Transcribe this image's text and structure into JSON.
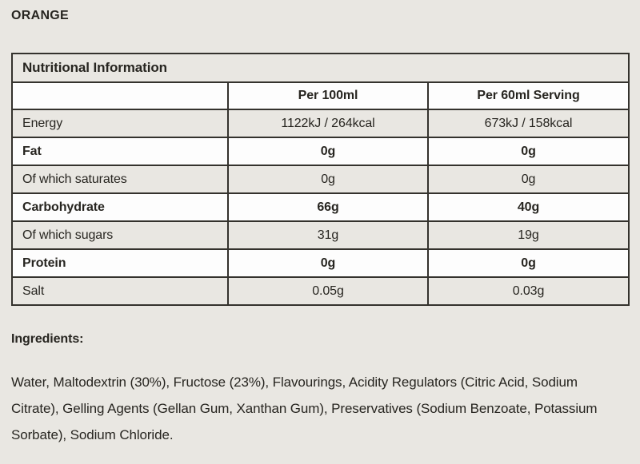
{
  "page": {
    "title": "ORANGE"
  },
  "colors": {
    "background": "#e9e7e2",
    "row_plain": "#fdfdfd",
    "border": "#34322d",
    "text": "#272520"
  },
  "table": {
    "title": "Nutritional Information",
    "columns": [
      "",
      "Per 100ml",
      "Per 60ml Serving"
    ],
    "rows": [
      {
        "label": "Energy",
        "per_100ml": "1122kJ / 264kcal",
        "per_serving": "673kJ / 158kcal",
        "bold": false
      },
      {
        "label": "Fat",
        "per_100ml": "0g",
        "per_serving": "0g",
        "bold": true
      },
      {
        "label": "Of which saturates",
        "per_100ml": "0g",
        "per_serving": "0g",
        "bold": false
      },
      {
        "label": "Carbohydrate",
        "per_100ml": "66g",
        "per_serving": "40g",
        "bold": true
      },
      {
        "label": "Of which sugars",
        "per_100ml": "31g",
        "per_serving": "19g",
        "bold": false
      },
      {
        "label": "Protein",
        "per_100ml": "0g",
        "per_serving": "0g",
        "bold": true
      },
      {
        "label": "Salt",
        "per_100ml": "0.05g",
        "per_serving": "0.03g",
        "bold": false
      }
    ]
  },
  "ingredients": {
    "heading": "Ingredients:",
    "text": "Water, Maltodextrin (30%), Fructose (23%), Flavourings, Acidity Regulators (Citric Acid, Sodium Citrate), Gelling Agents (Gellan Gum, Xanthan Gum), Preservatives (Sodium Benzoate, Potassium Sorbate), Sodium Chloride."
  }
}
